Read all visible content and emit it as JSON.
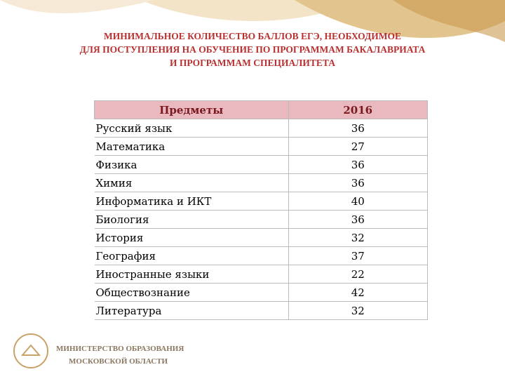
{
  "header": {
    "title_lines": [
      "МИНИМАЛЬНОЕ КОЛИЧЕСТВО БАЛЛОВ ЕГЭ, НЕОБХОДИМОЕ",
      "ДЛЯ ПОСТУПЛЕНИЯ НА ОБУЧЕНИЕ ПО ПРОГРАММАМ БАКАЛАВРИАТА",
      "И ПРОГРАММАМ СПЕЦИАЛИТЕТА"
    ]
  },
  "table": {
    "columns": [
      "Предметы",
      "2016"
    ],
    "rows": [
      [
        "Русский язык",
        "36"
      ],
      [
        "Математика",
        "27"
      ],
      [
        "Физика",
        "36"
      ],
      [
        "Химия",
        "36"
      ],
      [
        "Информатика и ИКТ",
        "40"
      ],
      [
        "Биология",
        "36"
      ],
      [
        "История",
        "32"
      ],
      [
        "География",
        "37"
      ],
      [
        "Иностранные языки",
        "22"
      ],
      [
        "Обществознание",
        "42"
      ],
      [
        "Литература",
        "32"
      ]
    ]
  },
  "footer": {
    "org_lines": [
      "МИНИСТЕРСТВО ОБРАЗОВАНИЯ",
      "МОСКОВСКОЙ ОБЛАСТИ"
    ]
  }
}
